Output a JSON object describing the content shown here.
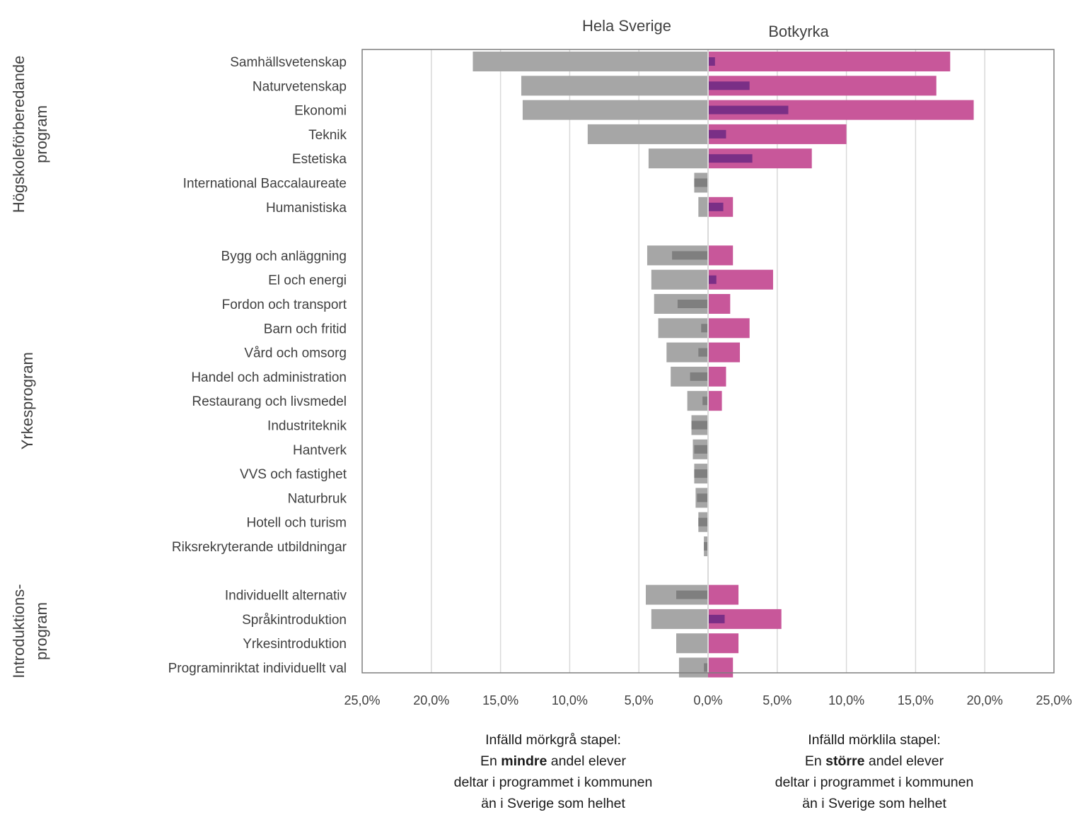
{
  "chart_data": {
    "type": "bar",
    "orientation": "horizontal-diverging",
    "left_header": "Hela Sverige",
    "right_header": "Botkyrka",
    "x_ticks": [
      "25,0%",
      "20,0%",
      "15,0%",
      "10,0%",
      "5,0%",
      "0,0%",
      "5,0%",
      "10,0%",
      "15,0%",
      "20,0%",
      "25,0%"
    ],
    "xlim": [
      -25,
      25
    ],
    "grid": true,
    "colors": {
      "sverige": "#a6a6a6",
      "botkyrka": "#c8579a",
      "inset_smaller": "#7f7f7f",
      "inset_larger": "#7a2f86"
    },
    "groups": [
      {
        "label_lines": [
          "Högskoleförberedande",
          "program"
        ],
        "categories": [
          "Samhällsvetenskap",
          "Naturvetenskap",
          "Ekonomi",
          "Teknik",
          "Estetiska",
          "International Baccalaureate",
          "Humanistiska"
        ],
        "sverige": [
          17.0,
          13.5,
          13.4,
          8.7,
          4.3,
          1.0,
          0.7
        ],
        "botkyrka": [
          17.5,
          16.5,
          19.2,
          10.0,
          7.5,
          0.0,
          1.8
        ],
        "inset_smaller": [
          0,
          0,
          0,
          0,
          0,
          1.0,
          0
        ],
        "inset_larger": [
          0.5,
          3.0,
          5.8,
          1.3,
          3.2,
          0,
          1.1
        ]
      },
      {
        "label_lines": [
          "Yrkesprogram"
        ],
        "categories": [
          "Bygg och anläggning",
          "El och energi",
          "Fordon och transport",
          "Barn och fritid",
          "Vård och omsorg",
          "Handel och administration",
          "Restaurang och livsmedel",
          "Industriteknik",
          "Hantverk",
          "VVS och fastighet",
          "Naturbruk",
          "Hotell och turism",
          "Riksrekryterande utbildningar"
        ],
        "sverige": [
          4.4,
          4.1,
          3.9,
          3.6,
          3.0,
          2.7,
          1.5,
          1.2,
          1.1,
          1.0,
          0.9,
          0.7,
          0.3
        ],
        "botkyrka": [
          1.8,
          4.7,
          1.6,
          3.0,
          2.3,
          1.3,
          1.0,
          0,
          0,
          0,
          0,
          0,
          0
        ],
        "inset_smaller": [
          2.6,
          0,
          2.2,
          0.5,
          0.7,
          1.3,
          0.4,
          1.2,
          1.0,
          1.0,
          0.8,
          0.7,
          0.3
        ],
        "inset_larger": [
          0,
          0.6,
          0,
          0,
          0,
          0,
          0,
          0,
          0,
          0,
          0,
          0,
          0
        ]
      },
      {
        "label_lines": [
          "Introduktions-",
          "program"
        ],
        "categories": [
          "Individuellt alternativ",
          "Språkintroduktion",
          "Yrkesintroduktion",
          "Programinriktat individuellt val"
        ],
        "sverige": [
          4.5,
          4.1,
          2.3,
          2.1
        ],
        "botkyrka": [
          2.2,
          5.3,
          2.2,
          1.8
        ],
        "inset_smaller": [
          2.3,
          0,
          0,
          0.3
        ],
        "inset_larger": [
          0,
          1.2,
          0,
          0
        ]
      }
    ]
  },
  "notes": {
    "left": {
      "line1": "Infälld mörkgrå stapel:",
      "pre": "En ",
      "bold": "mindre",
      "post": " andel elever",
      "line3": "deltar i programmet i kommunen",
      "line4": "än i Sverige som helhet"
    },
    "right": {
      "line1": "Infälld mörklila stapel:",
      "pre": "En ",
      "bold": "större",
      "post": " andel elever",
      "line3": "deltar i programmet i kommunen",
      "line4": "än i Sverige som helhet"
    }
  }
}
